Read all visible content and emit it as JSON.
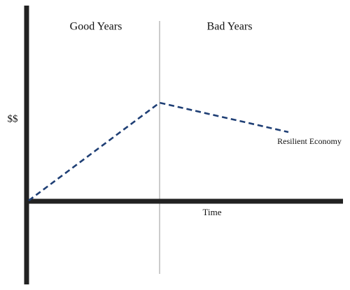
{
  "labels": {
    "left_period": "Good Years",
    "right_period": "Bad Years",
    "y_axis": "$$",
    "x_axis": "Time",
    "line": "Resilient Economy"
  }
}
